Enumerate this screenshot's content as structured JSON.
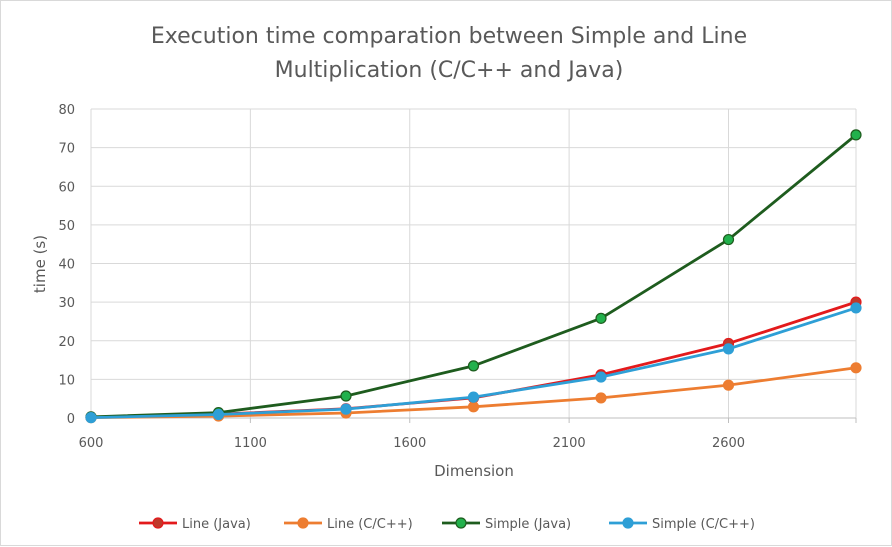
{
  "chart_data": {
    "type": "line",
    "title_lines": [
      "Execution time comparation between Simple and Line",
      "Multiplication (C/C++ and Java)"
    ],
    "xlabel": "Dimension",
    "ylabel": "time (s)",
    "xlim": [
      600,
      3000
    ],
    "ylim": [
      0,
      80
    ],
    "x_ticks": [
      600,
      1100,
      1600,
      2100,
      2600
    ],
    "y_ticks": [
      0,
      10,
      20,
      30,
      40,
      50,
      60,
      70,
      80
    ],
    "grid": true,
    "legend_position": "bottom",
    "x": [
      600,
      1000,
      1400,
      1800,
      2200,
      2600,
      3000
    ],
    "series": [
      {
        "name": "Line (Java)",
        "color": "#e31a1c",
        "marker_color": "#c0392b",
        "values": [
          0.2,
          1.0,
          2.4,
          5.2,
          11.2,
          19.3,
          30.0
        ]
      },
      {
        "name": "Line (C/C++)",
        "color": "#ed7d31",
        "marker_color": "#ed7d31",
        "values": [
          0.1,
          0.5,
          1.3,
          2.9,
          5.2,
          8.5,
          13.0
        ]
      },
      {
        "name": "Simple (Java)",
        "color": "#1e5c1e",
        "marker_color": "#22b14c",
        "values": [
          0.3,
          1.4,
          5.7,
          13.5,
          25.8,
          46.2,
          73.3
        ]
      },
      {
        "name": "Simple (C/C++)",
        "color": "#2e9fd6",
        "marker_color": "#2e9fd6",
        "values": [
          0.1,
          0.9,
          2.3,
          5.4,
          10.6,
          17.9,
          28.5
        ]
      }
    ]
  }
}
